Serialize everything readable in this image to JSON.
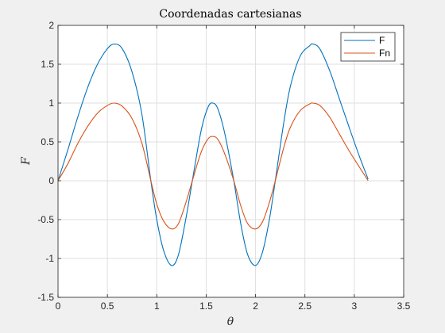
{
  "chart_data": {
    "type": "line",
    "title": "Coordenadas  cartesianas",
    "xlabel": "θ",
    "ylabel": "F",
    "xlim": [
      0,
      3.5
    ],
    "ylim": [
      -1.5,
      2
    ],
    "xticks": [
      "0",
      "0.5",
      "1",
      "1.5",
      "2",
      "2.5",
      "3",
      "3.5"
    ],
    "yticks": [
      "-1.5",
      "-1",
      "-0.5",
      "0",
      "0.5",
      "1",
      "1.5",
      "2"
    ],
    "grid": true,
    "legend_position": "top-right",
    "series": [
      {
        "name": "F",
        "color": "#0072BD",
        "x": [
          0,
          0.1,
          0.2,
          0.3,
          0.4,
          0.5,
          0.57,
          0.65,
          0.75,
          0.85,
          0.94,
          1.0,
          1.07,
          1.15,
          1.22,
          1.3,
          1.36,
          1.45,
          1.52,
          1.57,
          1.62,
          1.69,
          1.78,
          1.85,
          1.92,
          2.0,
          2.07,
          2.14,
          2.2,
          2.28,
          2.35,
          2.45,
          2.55,
          2.58,
          2.65,
          2.75,
          2.85,
          2.95,
          3.05,
          3.14
        ],
        "y": [
          0.0,
          0.4,
          0.82,
          1.2,
          1.5,
          1.7,
          1.76,
          1.7,
          1.4,
          0.85,
          0.0,
          -0.5,
          -0.9,
          -1.09,
          -0.95,
          -0.45,
          0.0,
          0.65,
          0.95,
          1.0,
          0.92,
          0.6,
          0.0,
          -0.55,
          -0.95,
          -1.09,
          -0.92,
          -0.5,
          0.0,
          0.7,
          1.2,
          1.6,
          1.74,
          1.76,
          1.7,
          1.42,
          1.05,
          0.68,
          0.32,
          0.02
        ]
      },
      {
        "name": "Fn",
        "color": "#D95319",
        "x": [
          0,
          0.1,
          0.2,
          0.3,
          0.4,
          0.5,
          0.57,
          0.65,
          0.75,
          0.85,
          0.94,
          1.0,
          1.07,
          1.15,
          1.22,
          1.3,
          1.36,
          1.45,
          1.52,
          1.57,
          1.62,
          1.69,
          1.78,
          1.85,
          1.92,
          2.0,
          2.07,
          2.14,
          2.2,
          2.28,
          2.35,
          2.45,
          2.55,
          2.58,
          2.65,
          2.75,
          2.85,
          2.95,
          3.05,
          3.14
        ],
        "y": [
          0.0,
          0.22,
          0.48,
          0.7,
          0.87,
          0.97,
          1.0,
          0.96,
          0.8,
          0.48,
          0.0,
          -0.3,
          -0.52,
          -0.62,
          -0.55,
          -0.26,
          0.0,
          0.37,
          0.54,
          0.57,
          0.53,
          0.34,
          0.0,
          -0.32,
          -0.55,
          -0.62,
          -0.53,
          -0.28,
          0.0,
          0.4,
          0.68,
          0.9,
          0.99,
          1.0,
          0.97,
          0.82,
          0.6,
          0.38,
          0.18,
          0.0
        ]
      }
    ]
  }
}
